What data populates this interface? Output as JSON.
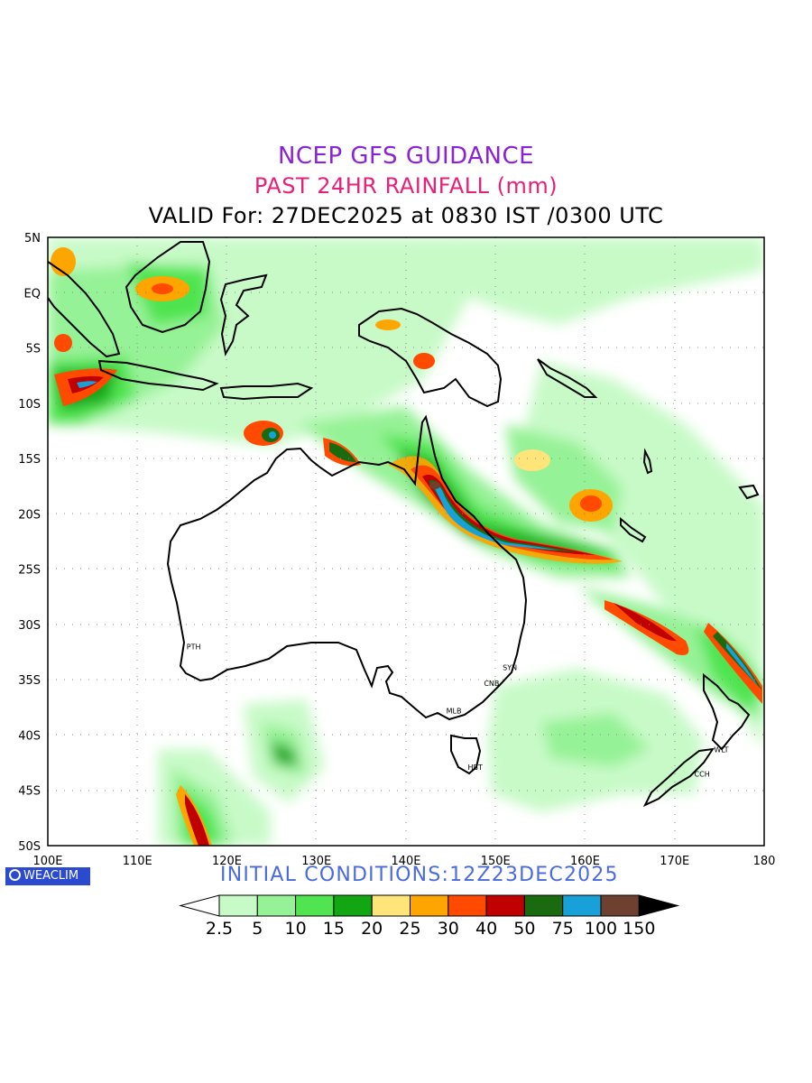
{
  "title": {
    "line1": "NCEP GFS GUIDANCE",
    "line2": "PAST 24HR RAINFALL (mm)",
    "line3": "VALID For: 27DEC2025 at 0830 IST /0300 UTC"
  },
  "map": {
    "lon_ticks": [
      "100E",
      "110E",
      "120E",
      "130E",
      "140E",
      "150E",
      "160E",
      "170E",
      "180"
    ],
    "lat_ticks": [
      "5N",
      "EQ",
      "5S",
      "10S",
      "15S",
      "20S",
      "25S",
      "30S",
      "35S",
      "40S",
      "45S",
      "50S"
    ],
    "cities": [
      {
        "name": "PTH",
        "lon": 115.9,
        "lat": -32.0
      },
      {
        "name": "SYN",
        "lon": 151.2,
        "lat": -33.9
      },
      {
        "name": "CNB",
        "lon": 149.1,
        "lat": -35.3
      },
      {
        "name": "MLB",
        "lon": 144.9,
        "lat": -37.8
      },
      {
        "name": "HBT",
        "lon": 147.3,
        "lat": -42.9
      },
      {
        "name": "WLT",
        "lon": 174.8,
        "lat": -41.3
      },
      {
        "name": "CCH",
        "lon": 172.6,
        "lat": -43.5
      }
    ]
  },
  "footer": {
    "brand": "WEACLIM",
    "initial": "INITIAL CONDITIONS:12Z23DEC2025"
  },
  "legend": {
    "labels": [
      "2.5",
      "5",
      "10",
      "15",
      "20",
      "25",
      "30",
      "40",
      "50",
      "75",
      "100",
      "150"
    ],
    "colors": [
      "#ffffff",
      "#c8fac8",
      "#96f296",
      "#50e450",
      "#12a612",
      "#ffe47a",
      "#ffa500",
      "#ff4a00",
      "#c00000",
      "#1a6b10",
      "#18a0d8",
      "#6e4030",
      "#000000"
    ]
  }
}
